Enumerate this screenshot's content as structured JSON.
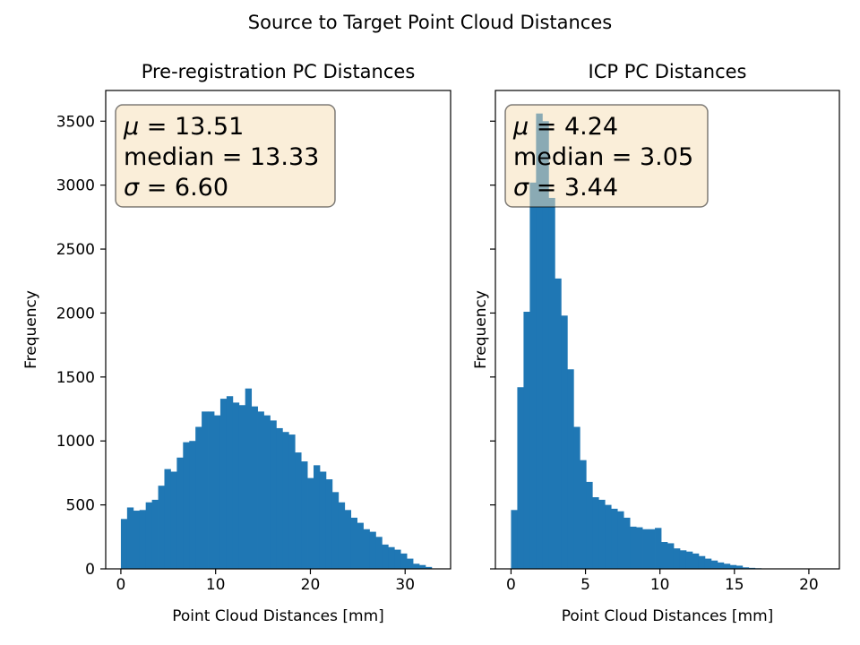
{
  "figure": {
    "suptitle": "Source to Target Point Cloud Distances"
  },
  "chart_data": [
    {
      "type": "bar",
      "title": "Pre-registration PC Distances",
      "xlabel": "Point Cloud Distances [mm]",
      "ylabel": "Frequency",
      "xlim": [
        -1.6,
        34.8
      ],
      "ylim": [
        0,
        3740
      ],
      "xticks": [
        0,
        10,
        20,
        30
      ],
      "yticks": [
        0,
        500,
        1000,
        1500,
        2000,
        2500,
        3000,
        3500
      ],
      "ytick_labels_visible": true,
      "grid": false,
      "bar_color": "#1f77b4",
      "stats": {
        "mu": "13.51",
        "median": "13.33",
        "sigma": "6.60"
      },
      "stats_box_color": "#f5deb3",
      "bins_start": 0.0,
      "bin_width": 0.656,
      "values": [
        390,
        480,
        455,
        460,
        520,
        540,
        650,
        780,
        760,
        870,
        990,
        1000,
        1110,
        1230,
        1230,
        1200,
        1330,
        1350,
        1300,
        1280,
        1410,
        1270,
        1230,
        1200,
        1160,
        1100,
        1070,
        1050,
        910,
        840,
        710,
        810,
        760,
        700,
        600,
        520,
        460,
        400,
        360,
        310,
        290,
        250,
        190,
        170,
        150,
        120,
        80,
        40,
        30,
        15
      ]
    },
    {
      "type": "bar",
      "title": "ICP PC Distances",
      "xlabel": "Point Cloud Distances [mm]",
      "ylabel": "Frequency",
      "xlim": [
        -1.05,
        22.05
      ],
      "ylim": [
        0,
        3740
      ],
      "xticks": [
        0,
        5,
        10,
        15,
        20
      ],
      "yticks": [
        0,
        500,
        1000,
        1500,
        2000,
        2500,
        3000,
        3500
      ],
      "ytick_labels_visible": false,
      "grid": false,
      "bar_color": "#1f77b4",
      "stats": {
        "mu": "4.24",
        "median": "3.05",
        "sigma": "3.44"
      },
      "stats_box_color": "#f5deb3",
      "bins_start": 0.0,
      "bin_width": 0.42,
      "values": [
        460,
        1420,
        2010,
        3020,
        3560,
        3500,
        2900,
        2270,
        1980,
        1560,
        1110,
        850,
        680,
        560,
        540,
        500,
        470,
        450,
        400,
        330,
        325,
        310,
        310,
        320,
        210,
        200,
        160,
        145,
        135,
        120,
        100,
        80,
        65,
        50,
        40,
        30,
        25,
        12,
        8,
        5,
        3,
        2,
        1
      ]
    }
  ]
}
